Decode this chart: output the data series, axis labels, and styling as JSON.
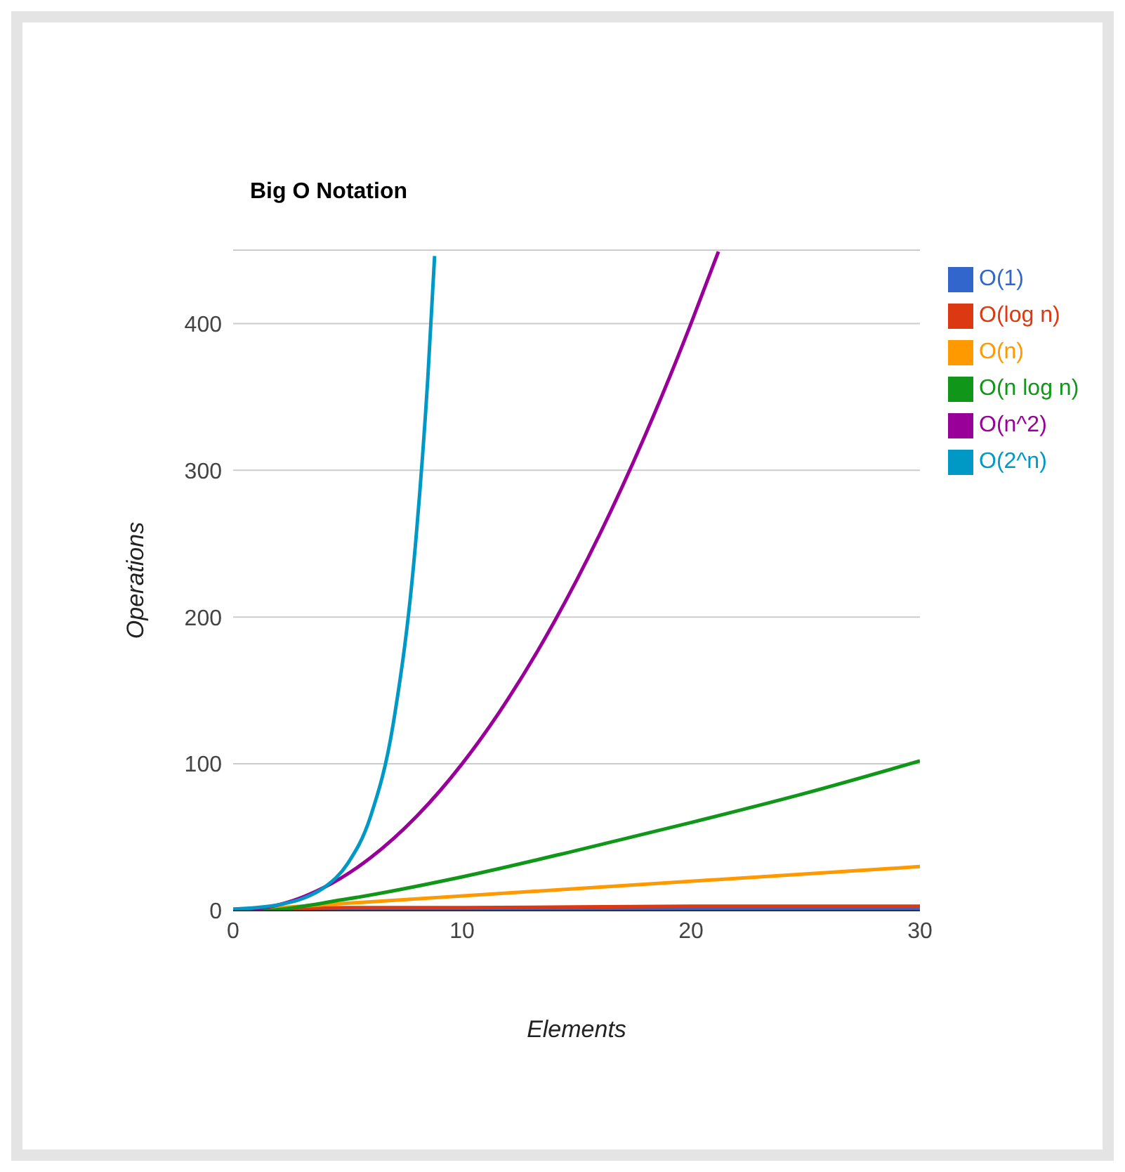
{
  "chart_data": {
    "type": "line",
    "title": "Big O Notation",
    "xlabel": "Elements",
    "ylabel": "Operations",
    "xlim": [
      0,
      30
    ],
    "xticks": [
      0,
      10,
      20,
      30
    ],
    "ylim": [
      0,
      450
    ],
    "yticks": [
      0,
      100,
      200,
      300,
      400
    ],
    "grid": "y",
    "legend": "right",
    "marker": "none",
    "line_style": "solid",
    "series": [
      {
        "name": "O(1)",
        "color": "#3366cc",
        "x": [
          0,
          30
        ],
        "values": [
          1,
          1
        ]
      },
      {
        "name": "O(log n)",
        "color": "#dc3912",
        "x": [
          1,
          2,
          5,
          10,
          20,
          30
        ],
        "values": [
          0,
          1,
          2,
          2,
          3,
          3
        ]
      },
      {
        "name": "O(n)",
        "color": "#ff9900",
        "x": [
          0,
          30
        ],
        "values": [
          0,
          30
        ]
      },
      {
        "name": "O(n log n)",
        "color": "#109618",
        "x": [
          0,
          1,
          5,
          10,
          15,
          20,
          25,
          30
        ],
        "values": [
          0,
          0,
          8,
          23,
          41,
          60,
          80,
          102
        ]
      },
      {
        "name": "O(n^2)",
        "color": "#990099",
        "x": [
          0,
          2,
          4,
          6,
          8,
          10,
          12,
          14,
          16,
          18,
          20,
          21,
          21.2
        ],
        "values": [
          0,
          4,
          16,
          36,
          64,
          100,
          144,
          196,
          256,
          324,
          400,
          441,
          449
        ]
      },
      {
        "name": "O(2^n)",
        "color": "#0099c6",
        "x": [
          0,
          1,
          2,
          3,
          4,
          5,
          6,
          7,
          8,
          8.5,
          8.8
        ],
        "values": [
          1,
          2,
          4,
          8,
          16,
          32,
          64,
          128,
          256,
          362,
          446
        ]
      }
    ]
  }
}
